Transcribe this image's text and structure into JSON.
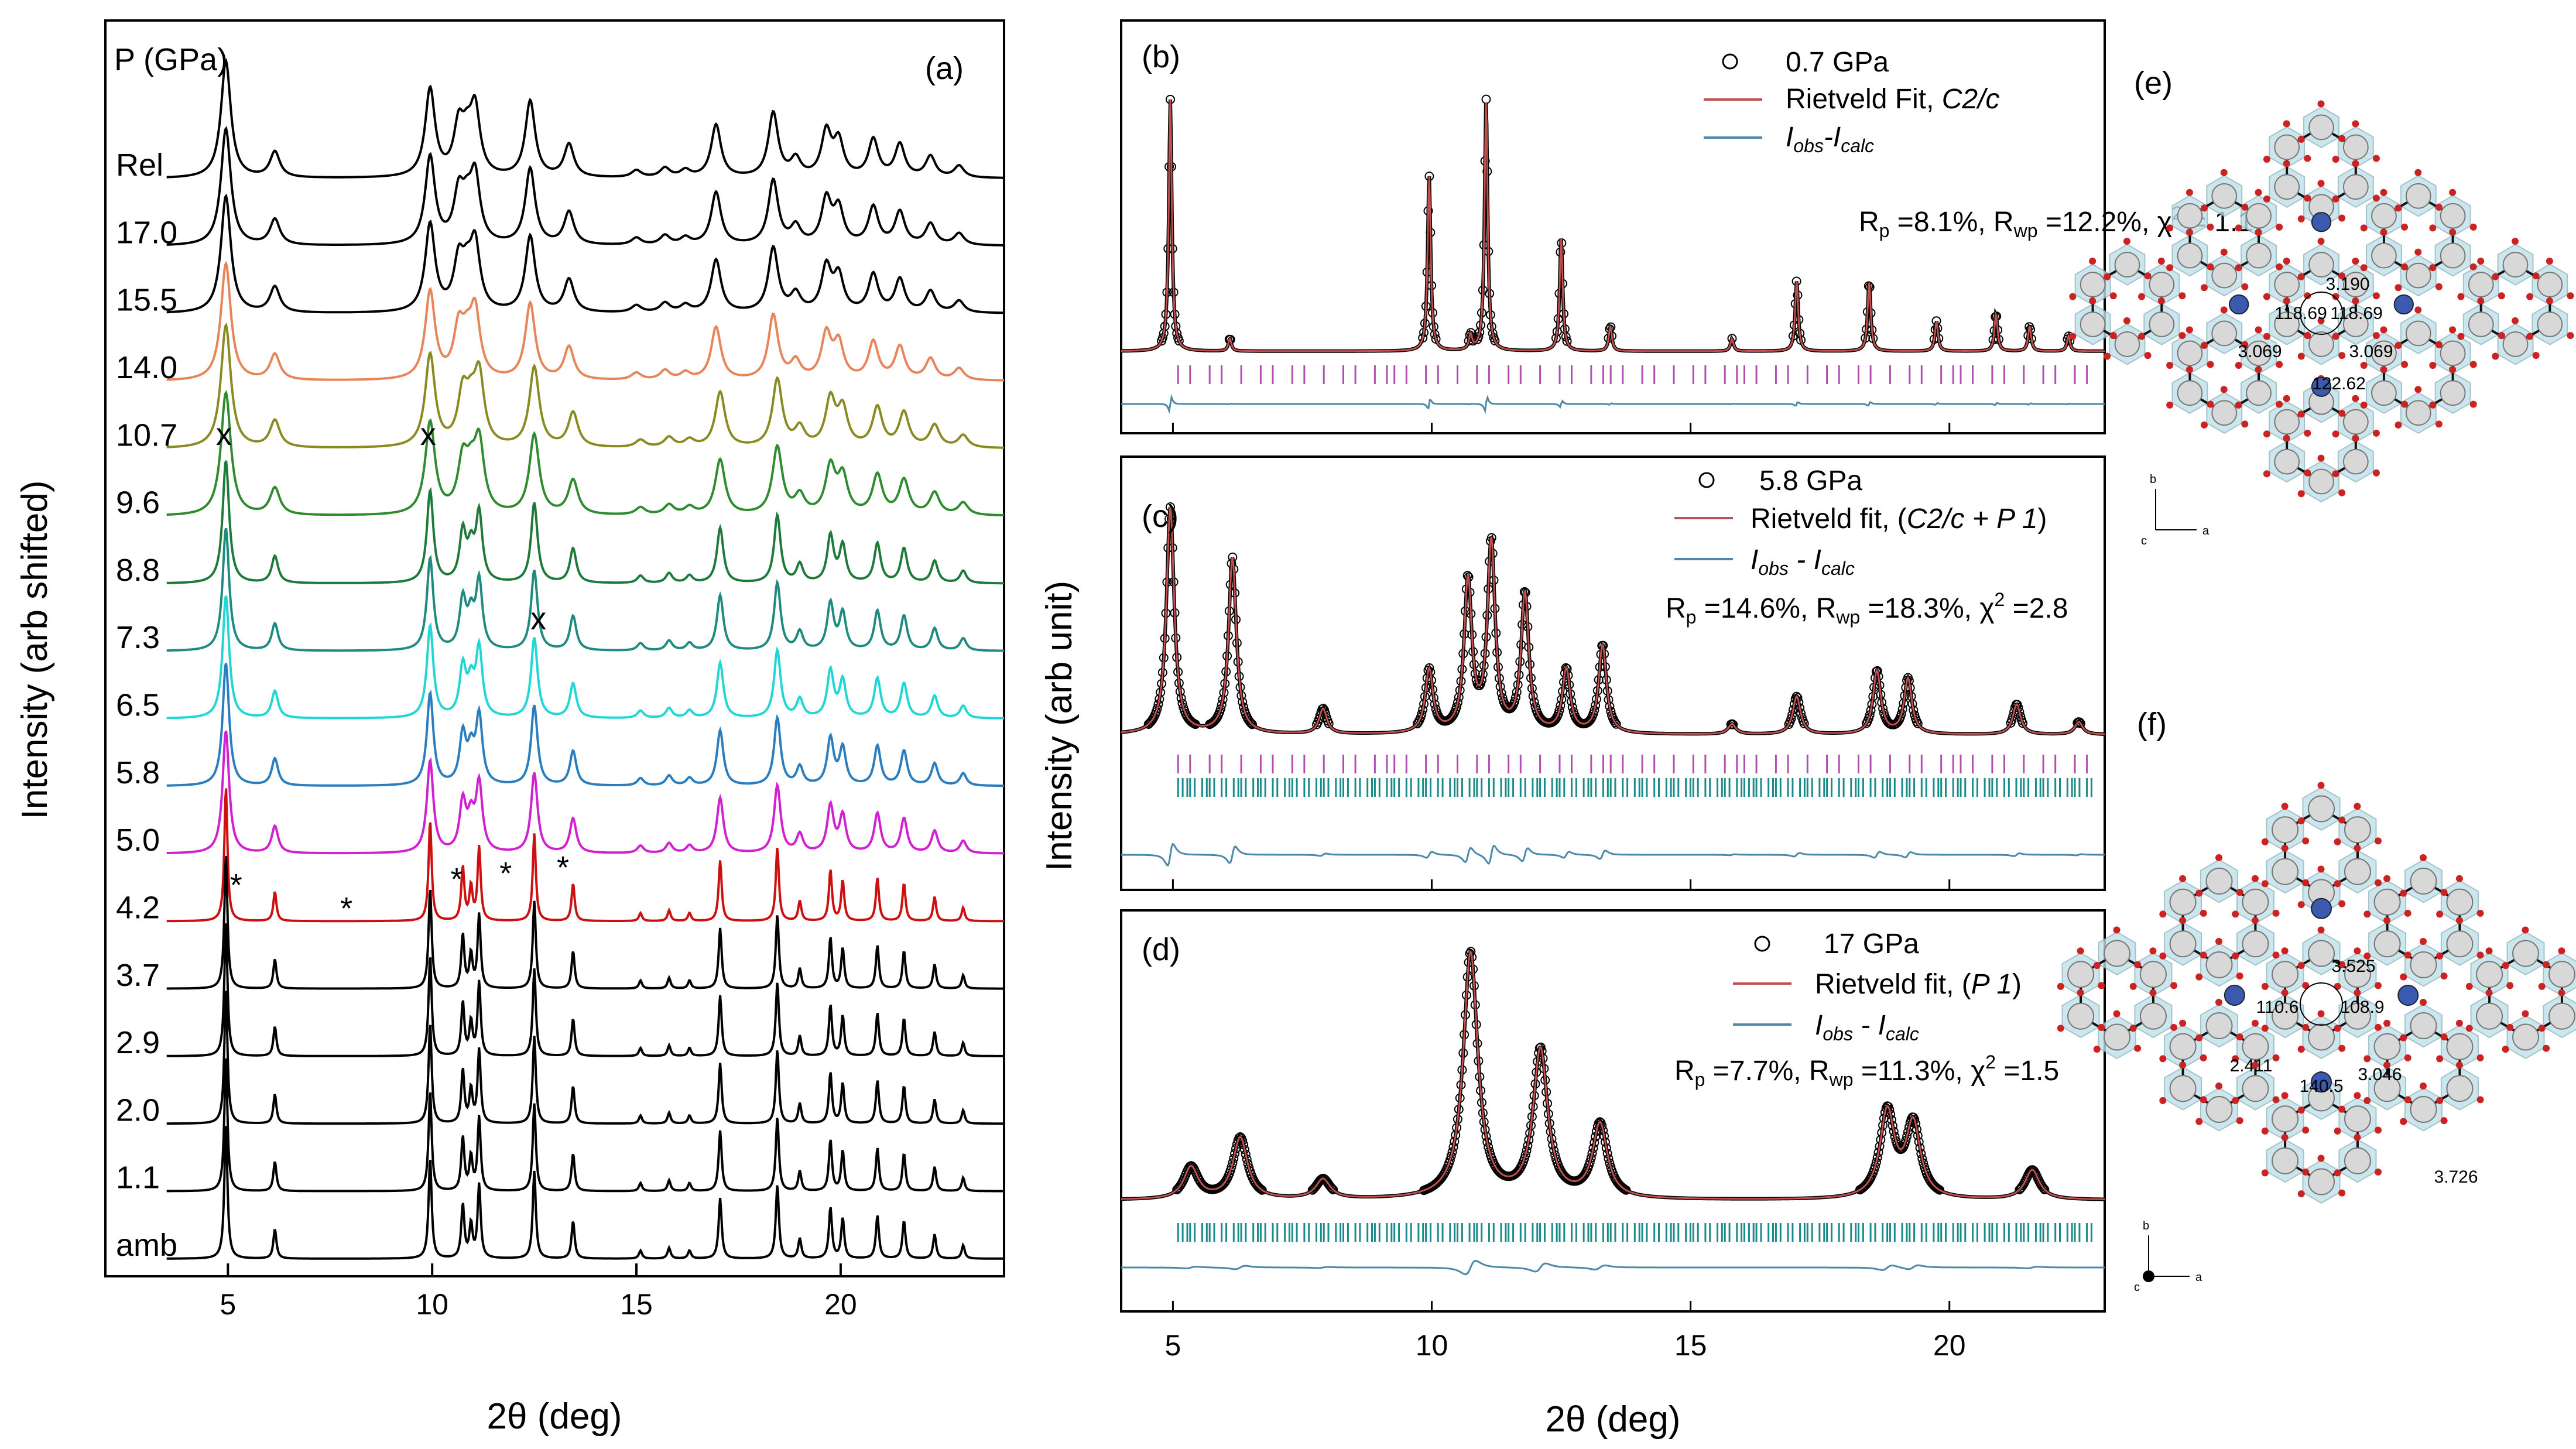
{
  "chart_data": [
    {
      "panel": "(a)",
      "type": "line",
      "xlabel": "2θ (deg)",
      "ylabel": "Intensity (arb shifted)",
      "legend_title": "P (GPa)",
      "xlim": [
        2,
        24
      ],
      "xticks": [
        5,
        10,
        15,
        20
      ],
      "series": [
        {
          "name": "Rel",
          "color": "#000000"
        },
        {
          "name": "17.0",
          "color": "#000000"
        },
        {
          "name": "15.5",
          "color": "#000000"
        },
        {
          "name": "14.0",
          "color": "#e8845a"
        },
        {
          "name": "10.7",
          "color": "#8a8a22"
        },
        {
          "name": "9.6",
          "color": "#2e8b2e"
        },
        {
          "name": "8.8",
          "color": "#1e7a3a"
        },
        {
          "name": "7.3",
          "color": "#1f8a80"
        },
        {
          "name": "6.5",
          "color": "#22d6d6"
        },
        {
          "name": "5.8",
          "color": "#2a7ec0"
        },
        {
          "name": "5.0",
          "color": "#d020d0"
        },
        {
          "name": "4.2",
          "color": "#cc1010"
        },
        {
          "name": "3.7",
          "color": "#000000"
        },
        {
          "name": "2.9",
          "color": "#000000"
        },
        {
          "name": "2.0",
          "color": "#000000"
        },
        {
          "name": "1.1",
          "color": "#000000"
        },
        {
          "name": "amb",
          "color": "#000000"
        }
      ],
      "annotations": [
        {
          "text": "x",
          "x": 4.9
        },
        {
          "text": "x",
          "x": 9.9
        },
        {
          "text": "x",
          "x": 12.6
        },
        {
          "text": "*",
          "x": 5.2
        },
        {
          "text": "*",
          "x": 7.9
        },
        {
          "text": "*",
          "x": 10.6
        },
        {
          "text": "*",
          "x": 11.8
        },
        {
          "text": "*",
          "x": 13.2
        }
      ]
    },
    {
      "panel": "(b)",
      "type": "scatter",
      "xlim": [
        4,
        23
      ],
      "xticks": [
        5,
        10,
        15,
        20
      ],
      "legend": [
        "0.7 GPa",
        "Rietveld Fit, C2/c",
        "Iobs-Icalc"
      ],
      "stats": "Rp=8.1%, Rwp=12.2%, χ2 = 1.1"
    },
    {
      "panel": "(c)",
      "type": "scatter",
      "xlim": [
        4,
        23
      ],
      "xticks": [
        5,
        10,
        15,
        20
      ],
      "legend": [
        "5.8 GPa",
        "Rietveld fit, (C2/c + P1)",
        "Iobs - Icalc"
      ],
      "stats": "Rp=14.6%, Rwp=18.3%, χ2 =2.8"
    },
    {
      "panel": "(d)",
      "type": "scatter",
      "xlim": [
        4,
        23
      ],
      "xticks": [
        5,
        10,
        15,
        20
      ],
      "legend": [
        "17 GPa",
        "Rietveld fit, (P1)",
        "Iobs - Icalc"
      ],
      "stats": "Rp=7.7%, Rwp=11.3%, χ2 =1.5"
    }
  ],
  "panel_bcd": {
    "ylabel": "Intensity (arb unit)",
    "xlabel": "2θ (deg)"
  },
  "labels": {
    "a": "(a)",
    "b": "(b)",
    "c": "(c)",
    "d": "(d)",
    "e": "(e)",
    "f": "(f)"
  },
  "text": {
    "b_legend_1": "0.7 GPa",
    "b_legend_2": "Rietveld Fit, ",
    "b_legend_2i": "C2/c",
    "b_stats": "Rp =8.1%, Rwp =12.2%, χ2 = 1.1",
    "c_legend_1": "5.8 GPa",
    "c_legend_2": "Rietveld fit, (",
    "c_legend_2i": "C2/c + P 1",
    "c_stats": "Rp =14.6%, Rwp =18.3%, χ2 =2.8",
    "d_legend_1": "17 GPa",
    "d_legend_2": "Rietveld fit, (",
    "d_legend_2i": "P 1",
    "d_stats": "Rp =7.7%, Rwp =11.3%, χ2 =1.5",
    "e_values": [
      "3.190",
      "118.69",
      "118.69",
      "3.069",
      "3.069",
      "122.62"
    ],
    "f_values": [
      "3.525",
      "110.6",
      "108.9",
      "2.411",
      "140.5",
      "3.046",
      "3.726"
    ],
    "axes_b": "b",
    "axes_c": "c",
    "axes_a": "a"
  },
  "peaks_a": [
    [
      4.95,
      1.0
    ],
    [
      6.15,
      0.22
    ],
    [
      9.95,
      0.75
    ],
    [
      10.75,
      0.4
    ],
    [
      10.95,
      0.25
    ],
    [
      11.15,
      0.55
    ],
    [
      12.5,
      0.65
    ],
    [
      13.45,
      0.28
    ],
    [
      15.1,
      0.06
    ],
    [
      15.8,
      0.08
    ],
    [
      16.3,
      0.06
    ],
    [
      17.05,
      0.45
    ],
    [
      18.45,
      0.55
    ],
    [
      19.0,
      0.15
    ],
    [
      19.75,
      0.38
    ],
    [
      20.05,
      0.3
    ],
    [
      20.9,
      0.32
    ],
    [
      21.55,
      0.28
    ],
    [
      22.3,
      0.18
    ],
    [
      23.0,
      0.1
    ]
  ]
}
